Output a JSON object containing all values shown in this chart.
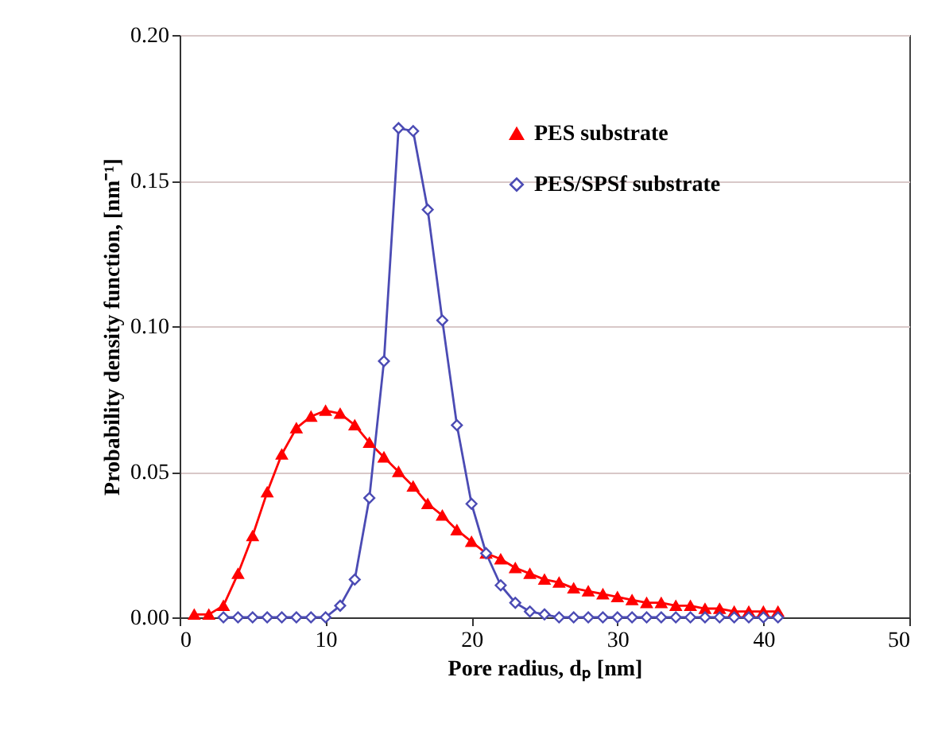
{
  "chart_data": {
    "type": "line",
    "xlabel": "Pore radius, dₚ [nm]",
    "ylabel": "Probability density function, [nm⁻¹]",
    "series": [
      {
        "name": "PES substrate",
        "color": "#ff0000",
        "marker": "triangle",
        "x": [
          1,
          2,
          3,
          4,
          5,
          6,
          7,
          8,
          9,
          10,
          11,
          12,
          13,
          14,
          15,
          16,
          17,
          18,
          19,
          20,
          21,
          22,
          23,
          24,
          25,
          26,
          27,
          28,
          29,
          30,
          31,
          32,
          33,
          34,
          35,
          36,
          37,
          38,
          39,
          40,
          41
        ],
        "values": [
          0.001,
          0.001,
          0.004,
          0.015,
          0.028,
          0.043,
          0.056,
          0.065,
          0.069,
          0.071,
          0.07,
          0.066,
          0.06,
          0.055,
          0.05,
          0.045,
          0.039,
          0.035,
          0.03,
          0.026,
          0.022,
          0.02,
          0.017,
          0.015,
          0.013,
          0.012,
          0.01,
          0.009,
          0.008,
          0.007,
          0.006,
          0.005,
          0.005,
          0.004,
          0.004,
          0.003,
          0.003,
          0.002,
          0.002,
          0.002,
          0.002
        ]
      },
      {
        "name": "PES/SPSf substrate",
        "color": "#4b4bb4",
        "marker": "diamond",
        "x": [
          3,
          4,
          5,
          6,
          7,
          8,
          9,
          10,
          11,
          12,
          13,
          14,
          15,
          16,
          17,
          18,
          19,
          20,
          21,
          22,
          23,
          24,
          25,
          26,
          27,
          28,
          29,
          30,
          31,
          32,
          33,
          34,
          35,
          36,
          37,
          38,
          39,
          40,
          41
        ],
        "values": [
          0,
          0,
          0,
          0,
          0,
          0,
          0,
          0,
          0.004,
          0.013,
          0.041,
          0.088,
          0.168,
          0.167,
          0.14,
          0.102,
          0.066,
          0.039,
          0.022,
          0.011,
          0.005,
          0.002,
          0.001,
          0,
          0,
          0,
          0,
          0,
          0,
          0,
          0,
          0,
          0,
          0,
          0,
          0,
          0,
          0,
          0
        ]
      }
    ],
    "xlim": [
      0,
      50
    ],
    "xticks": [
      0,
      10,
      20,
      30,
      40,
      50
    ],
    "ylim": [
      0,
      0.2
    ],
    "yticks": [
      {
        "value": 0,
        "label": "0.00"
      },
      {
        "value": 0.05,
        "label": "0.05"
      },
      {
        "value": 0.1,
        "label": "0.10"
      },
      {
        "value": 0.15,
        "label": "0.15"
      },
      {
        "value": 0.2,
        "label": "0.20"
      }
    ],
    "grid": "y",
    "legend": "top right",
    "line_style": "solid"
  }
}
